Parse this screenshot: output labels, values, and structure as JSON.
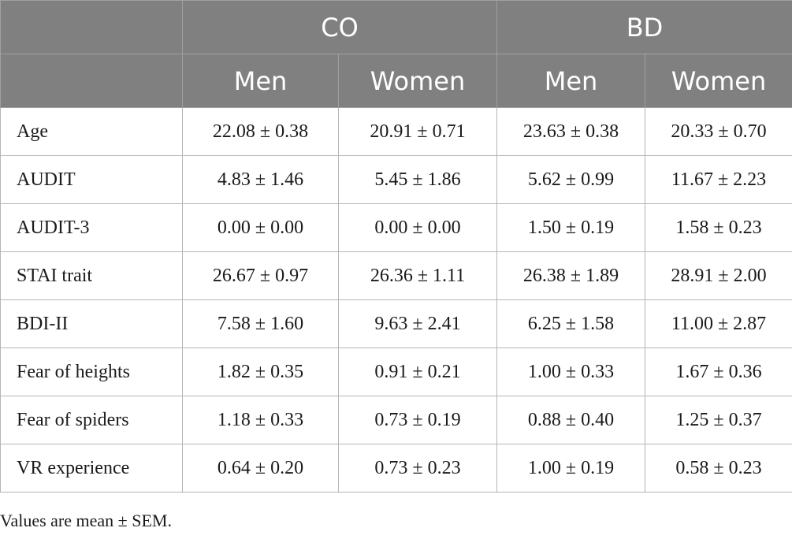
{
  "header": {
    "groups": [
      "CO",
      "BD"
    ],
    "subheaders": [
      "Men",
      "Women",
      "Men",
      "Women"
    ]
  },
  "rows": [
    {
      "label": "Age",
      "values": [
        "22.08 ± 0.38",
        "20.91 ± 0.71",
        "23.63 ± 0.38",
        "20.33 ± 0.70"
      ]
    },
    {
      "label": "AUDIT",
      "values": [
        "4.83 ± 1.46",
        "5.45 ± 1.86",
        "5.62 ± 0.99",
        "11.67 ± 2.23"
      ]
    },
    {
      "label": "AUDIT-3",
      "values": [
        "0.00 ± 0.00",
        "0.00 ± 0.00",
        "1.50 ± 0.19",
        "1.58 ± 0.23"
      ]
    },
    {
      "label": "STAI trait",
      "values": [
        "26.67 ± 0.97",
        "26.36 ± 1.11",
        "26.38 ± 1.89",
        "28.91 ± 2.00"
      ]
    },
    {
      "label": "BDI-II",
      "values": [
        "7.58 ± 1.60",
        "9.63 ± 2.41",
        "6.25 ± 1.58",
        "11.00 ± 2.87"
      ]
    },
    {
      "label": "Fear of heights",
      "values": [
        "1.82 ± 0.35",
        "0.91 ± 0.21",
        "1.00 ± 0.33",
        "1.67 ± 0.36"
      ]
    },
    {
      "label": "Fear of spiders",
      "values": [
        "1.18 ± 0.33",
        "0.73 ± 0.19",
        "0.88 ± 0.40",
        "1.25 ± 0.37"
      ]
    },
    {
      "label": "VR experience",
      "values": [
        "0.64 ± 0.20",
        "0.73 ± 0.23",
        "1.00 ± 0.19",
        "0.58 ± 0.23"
      ]
    }
  ],
  "footnote": "Values are mean ± SEM.",
  "colors": {
    "header_bg": "#808080",
    "header_text": "#ffffff",
    "border": "#b5b5b5"
  }
}
